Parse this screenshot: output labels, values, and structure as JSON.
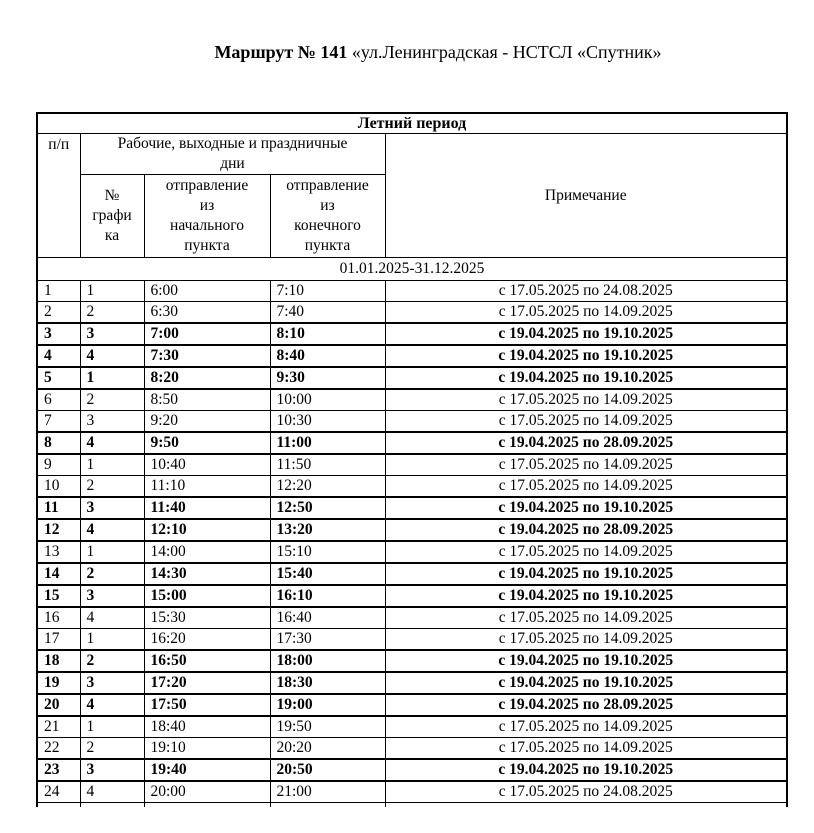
{
  "page": {
    "background_color": "#ffffff",
    "text_color": "#000000",
    "border_color": "#000000"
  },
  "title": {
    "route_bold": "Маршрут № 141",
    "route_rest": "«ул.Ленинградская - НСТСЛ «Спутник»"
  },
  "table": {
    "season_header": "Летний период",
    "header": {
      "pp": "п/п",
      "days_group": "Рабочие, выходные и праздничные\nдни",
      "schedule_no": "№\nграфи\nка",
      "dep_start": "отправление\nиз\nначального\nпункта",
      "dep_end": "отправление\nиз\nконечного\nпункта",
      "note": "Примечание"
    },
    "date_range": "01.01.2025-31.12.2025",
    "rows": [
      {
        "n": "1",
        "g": "1",
        "dep": "6:00",
        "arr": "7:10",
        "note": "с 17.05.2025 по 24.08.2025",
        "bold": false
      },
      {
        "n": "2",
        "g": "2",
        "dep": "6:30",
        "arr": "7:40",
        "note": "с 17.05.2025 по 14.09.2025",
        "bold": false
      },
      {
        "n": "3",
        "g": "3",
        "dep": "7:00",
        "arr": "8:10",
        "note": "с 19.04.2025 по 19.10.2025",
        "bold": true
      },
      {
        "n": "4",
        "g": "4",
        "dep": "7:30",
        "arr": "8:40",
        "note": "с 19.04.2025 по 19.10.2025",
        "bold": true
      },
      {
        "n": "5",
        "g": "1",
        "dep": "8:20",
        "arr": "9:30",
        "note": "с 19.04.2025 по 19.10.2025",
        "bold": true
      },
      {
        "n": "6",
        "g": "2",
        "dep": "8:50",
        "arr": "10:00",
        "note": "с 17.05.2025 по 14.09.2025",
        "bold": false
      },
      {
        "n": "7",
        "g": "3",
        "dep": "9:20",
        "arr": "10:30",
        "note": "с 17.05.2025 по 14.09.2025",
        "bold": false
      },
      {
        "n": "8",
        "g": "4",
        "dep": "9:50",
        "arr": "11:00",
        "note": "с 19.04.2025 по 28.09.2025",
        "bold": true
      },
      {
        "n": "9",
        "g": "1",
        "dep": "10:40",
        "arr": "11:50",
        "note": "с 17.05.2025 по 14.09.2025",
        "bold": false
      },
      {
        "n": "10",
        "g": "2",
        "dep": "11:10",
        "arr": "12:20",
        "note": "с 17.05.2025 по 14.09.2025",
        "bold": false
      },
      {
        "n": "11",
        "g": "3",
        "dep": "11:40",
        "arr": "12:50",
        "note": "с 19.04.2025 по 19.10.2025",
        "bold": true
      },
      {
        "n": "12",
        "g": "4",
        "dep": "12:10",
        "arr": "13:20",
        "note": "с 19.04.2025 по 28.09.2025",
        "bold": true
      },
      {
        "n": "13",
        "g": "1",
        "dep": "14:00",
        "arr": "15:10",
        "note": "с 17.05.2025 по 14.09.2025",
        "bold": false
      },
      {
        "n": "14",
        "g": "2",
        "dep": "14:30",
        "arr": "15:40",
        "note": "с 19.04.2025 по 19.10.2025",
        "bold": true
      },
      {
        "n": "15",
        "g": "3",
        "dep": "15:00",
        "arr": "16:10",
        "note": "с 19.04.2025 по 19.10.2025",
        "bold": true
      },
      {
        "n": "16",
        "g": "4",
        "dep": "15:30",
        "arr": "16:40",
        "note": "с 17.05.2025 по 14.09.2025",
        "bold": false
      },
      {
        "n": "17",
        "g": "1",
        "dep": "16:20",
        "arr": "17:30",
        "note": "с 17.05.2025 по 14.09.2025",
        "bold": false
      },
      {
        "n": "18",
        "g": "2",
        "dep": "16:50",
        "arr": "18:00",
        "note": "с 19.04.2025 по 19.10.2025",
        "bold": true
      },
      {
        "n": "19",
        "g": "3",
        "dep": "17:20",
        "arr": "18:30",
        "note": "с 19.04.2025 по 19.10.2025",
        "bold": true
      },
      {
        "n": "20",
        "g": "4",
        "dep": "17:50",
        "arr": "19:00",
        "note": "с 19.04.2025 по 28.09.2025",
        "bold": true
      },
      {
        "n": "21",
        "g": "1",
        "dep": "18:40",
        "arr": "19:50",
        "note": "с 17.05.2025 по 14.09.2025",
        "bold": false
      },
      {
        "n": "22",
        "g": "2",
        "dep": "19:10",
        "arr": "20:20",
        "note": "с 17.05.2025 по 14.09.2025",
        "bold": false
      },
      {
        "n": "23",
        "g": "3",
        "dep": "19:40",
        "arr": "20:50",
        "note": "с 19.04.2025 по 19.10.2025",
        "bold": true
      },
      {
        "n": "24",
        "g": "4",
        "dep": "20:00",
        "arr": "21:00",
        "note": "с 17.05.2025 по 24.08.2025",
        "bold": false
      }
    ]
  }
}
